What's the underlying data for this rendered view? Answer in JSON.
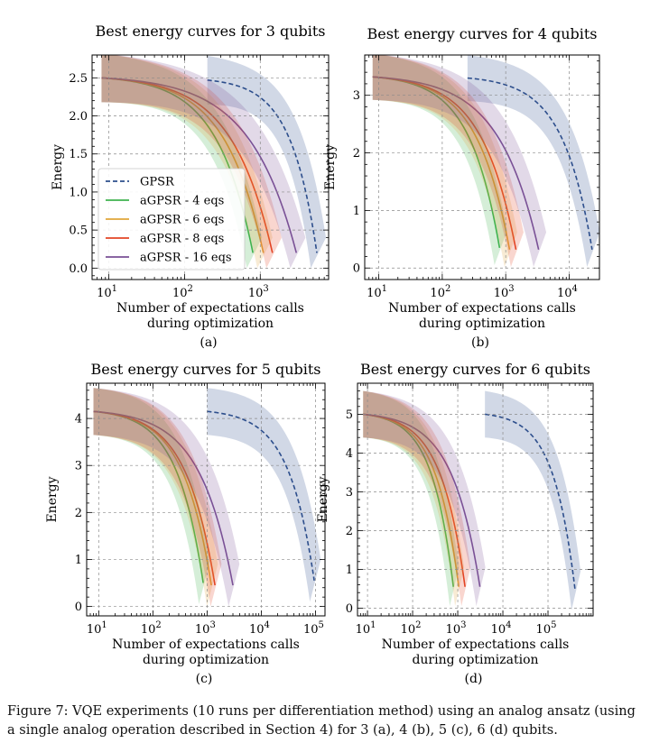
{
  "colors": {
    "GPSR": "#2d4f8c",
    "aGPSR - 4 eqs": "#3fb34f",
    "aGPSR - 6 eqs": "#e0a63a",
    "aGPSR - 8 eqs": "#e34424",
    "aGPSR - 16 eqs": "#7a5196"
  },
  "legend_items": [
    "GPSR",
    "aGPSR - 4 eqs",
    "aGPSR - 6 eqs",
    "aGPSR - 8 eqs",
    "aGPSR - 16 eqs"
  ],
  "caption": "Figure 7: VQE experiments (10 runs per differentiation method) using an analog ansatz (using a single analog operation described in Section 4) for 3 (a), 4 (b), 5 (c), 6 (d) qubits.",
  "chart_data": [
    {
      "type": "line",
      "panel_label": "(a)",
      "title": "Best energy curves for 3 qubits",
      "xlabel": [
        "Number of expectations calls",
        "during optimization"
      ],
      "ylabel": "Energy",
      "xscale": "log",
      "xlim": [
        6,
        8000
      ],
      "ylim": [
        -0.15,
        2.8
      ],
      "xticks": [
        10,
        100,
        1000
      ],
      "xtick_labels": [
        "10^1",
        "10^2",
        "10^3"
      ],
      "yticks": [
        0.0,
        0.5,
        1.0,
        1.5,
        2.0,
        2.5
      ],
      "ytick_labels": [
        "0.0",
        "0.5",
        "1.0",
        "1.5",
        "2.0",
        "2.5"
      ],
      "grid": true,
      "legend": "center-left",
      "series": [
        {
          "name": "GPSR",
          "style": "dashed",
          "x_start": 200,
          "x_end": 5600,
          "y_start": 2.47,
          "y_end": 0.2,
          "band": 0.32,
          "band_end": 0.2
        },
        {
          "name": "aGPSR - 4 eqs",
          "style": "solid",
          "x_start": 8,
          "x_end": 800,
          "y_start": 2.5,
          "y_end": 0.2,
          "band": 0.32,
          "band_end": 0.2
        },
        {
          "name": "aGPSR - 6 eqs",
          "style": "solid",
          "x_start": 8,
          "x_end": 1100,
          "y_start": 2.5,
          "y_end": 0.2,
          "band": 0.32,
          "band_end": 0.2
        },
        {
          "name": "aGPSR - 8 eqs",
          "style": "solid",
          "x_start": 8,
          "x_end": 1450,
          "y_start": 2.5,
          "y_end": 0.2,
          "band": 0.32,
          "band_end": 0.2
        },
        {
          "name": "aGPSR - 16 eqs",
          "style": "solid",
          "x_start": 8,
          "x_end": 3000,
          "y_start": 2.5,
          "y_end": 0.2,
          "band": 0.32,
          "band_end": 0.2
        }
      ]
    },
    {
      "type": "line",
      "panel_label": "(b)",
      "title": "Best energy curves for 4 qubits",
      "xlabel": [
        "Number of expectations calls",
        "during optimization"
      ],
      "ylabel": "Energy",
      "xscale": "log",
      "xlim": [
        6,
        30000
      ],
      "ylim": [
        -0.2,
        3.7
      ],
      "xticks": [
        10,
        100,
        1000,
        10000
      ],
      "xtick_labels": [
        "10^1",
        "10^2",
        "10^3",
        "10^4"
      ],
      "yticks": [
        0,
        1,
        2,
        3
      ],
      "ytick_labels": [
        "0",
        "1",
        "2",
        "3"
      ],
      "grid": true,
      "series": [
        {
          "name": "GPSR",
          "style": "dashed",
          "x_start": 250,
          "x_end": 23000,
          "y_start": 3.3,
          "y_end": 0.32,
          "band": 0.4,
          "band_end": 0.3
        },
        {
          "name": "aGPSR - 4 eqs",
          "style": "solid",
          "x_start": 8,
          "x_end": 800,
          "y_start": 3.32,
          "y_end": 0.35,
          "band": 0.4,
          "band_end": 0.3
        },
        {
          "name": "aGPSR - 6 eqs",
          "style": "solid",
          "x_start": 8,
          "x_end": 1150,
          "y_start": 3.32,
          "y_end": 0.32,
          "band": 0.4,
          "band_end": 0.3
        },
        {
          "name": "aGPSR - 8 eqs",
          "style": "solid",
          "x_start": 8,
          "x_end": 1450,
          "y_start": 3.32,
          "y_end": 0.32,
          "band": 0.4,
          "band_end": 0.3
        },
        {
          "name": "aGPSR - 16 eqs",
          "style": "solid",
          "x_start": 8,
          "x_end": 3300,
          "y_start": 3.32,
          "y_end": 0.32,
          "band": 0.4,
          "band_end": 0.3
        }
      ]
    },
    {
      "type": "line",
      "panel_label": "(c)",
      "title": "Best energy curves for 5 qubits",
      "xlabel": [
        "Number of expectations calls",
        "during optimization"
      ],
      "ylabel": "Energy",
      "xscale": "log",
      "xlim": [
        6,
        150000
      ],
      "ylim": [
        -0.2,
        4.75
      ],
      "xticks": [
        10,
        100,
        1000,
        10000,
        100000
      ],
      "xtick_labels": [
        "10^1",
        "10^2",
        "10^3",
        "10^4",
        "10^5"
      ],
      "yticks": [
        0,
        1,
        2,
        3,
        4
      ],
      "ytick_labels": [
        "0",
        "1",
        "2",
        "3",
        "4"
      ],
      "grid": true,
      "series": [
        {
          "name": "GPSR",
          "style": "dashed",
          "x_start": 1000,
          "x_end": 95000,
          "y_start": 4.15,
          "y_end": 0.55,
          "band": 0.5,
          "band_end": 0.45
        },
        {
          "name": "aGPSR - 4 eqs",
          "style": "solid",
          "x_start": 8,
          "x_end": 850,
          "y_start": 4.15,
          "y_end": 0.5,
          "band": 0.5,
          "band_end": 0.45
        },
        {
          "name": "aGPSR - 6 eqs",
          "style": "solid",
          "x_start": 8,
          "x_end": 1200,
          "y_start": 4.15,
          "y_end": 0.45,
          "band": 0.5,
          "band_end": 0.45
        },
        {
          "name": "aGPSR - 8 eqs",
          "style": "solid",
          "x_start": 8,
          "x_end": 1400,
          "y_start": 4.15,
          "y_end": 0.45,
          "band": 0.5,
          "band_end": 0.45
        },
        {
          "name": "aGPSR - 16 eqs",
          "style": "solid",
          "x_start": 8,
          "x_end": 3000,
          "y_start": 4.15,
          "y_end": 0.45,
          "band": 0.5,
          "band_end": 0.45
        }
      ]
    },
    {
      "type": "line",
      "panel_label": "(d)",
      "title": "Best energy curves for 6 qubits",
      "xlabel": [
        "Number of expectations calls",
        "during optimization"
      ],
      "ylabel": "Energy",
      "xscale": "log",
      "xlim": [
        6,
        1000000
      ],
      "ylim": [
        -0.2,
        5.8
      ],
      "xticks": [
        10,
        100,
        1000,
        10000,
        100000
      ],
      "xtick_labels": [
        "10^1",
        "10^2",
        "10^3",
        "10^4",
        "10^5"
      ],
      "yticks": [
        0,
        1,
        2,
        3,
        4,
        5
      ],
      "ytick_labels": [
        "0",
        "1",
        "2",
        "3",
        "4",
        "5"
      ],
      "grid": true,
      "series": [
        {
          "name": "GPSR",
          "style": "dashed",
          "x_start": 4000,
          "x_end": 400000,
          "y_start": 5.0,
          "y_end": 0.45,
          "band": 0.6,
          "band_end": 0.5
        },
        {
          "name": "aGPSR - 4 eqs",
          "style": "solid",
          "x_start": 8,
          "x_end": 800,
          "y_start": 5.0,
          "y_end": 0.55,
          "band": 0.6,
          "band_end": 0.5
        },
        {
          "name": "aGPSR - 6 eqs",
          "style": "solid",
          "x_start": 8,
          "x_end": 1050,
          "y_start": 5.0,
          "y_end": 0.55,
          "band": 0.6,
          "band_end": 0.5
        },
        {
          "name": "aGPSR - 8 eqs",
          "style": "solid",
          "x_start": 8,
          "x_end": 1450,
          "y_start": 5.0,
          "y_end": 0.55,
          "band": 0.6,
          "band_end": 0.5
        },
        {
          "name": "aGPSR - 16 eqs",
          "style": "solid",
          "x_start": 8,
          "x_end": 3100,
          "y_start": 5.0,
          "y_end": 0.55,
          "band": 0.6,
          "band_end": 0.5
        }
      ]
    }
  ]
}
